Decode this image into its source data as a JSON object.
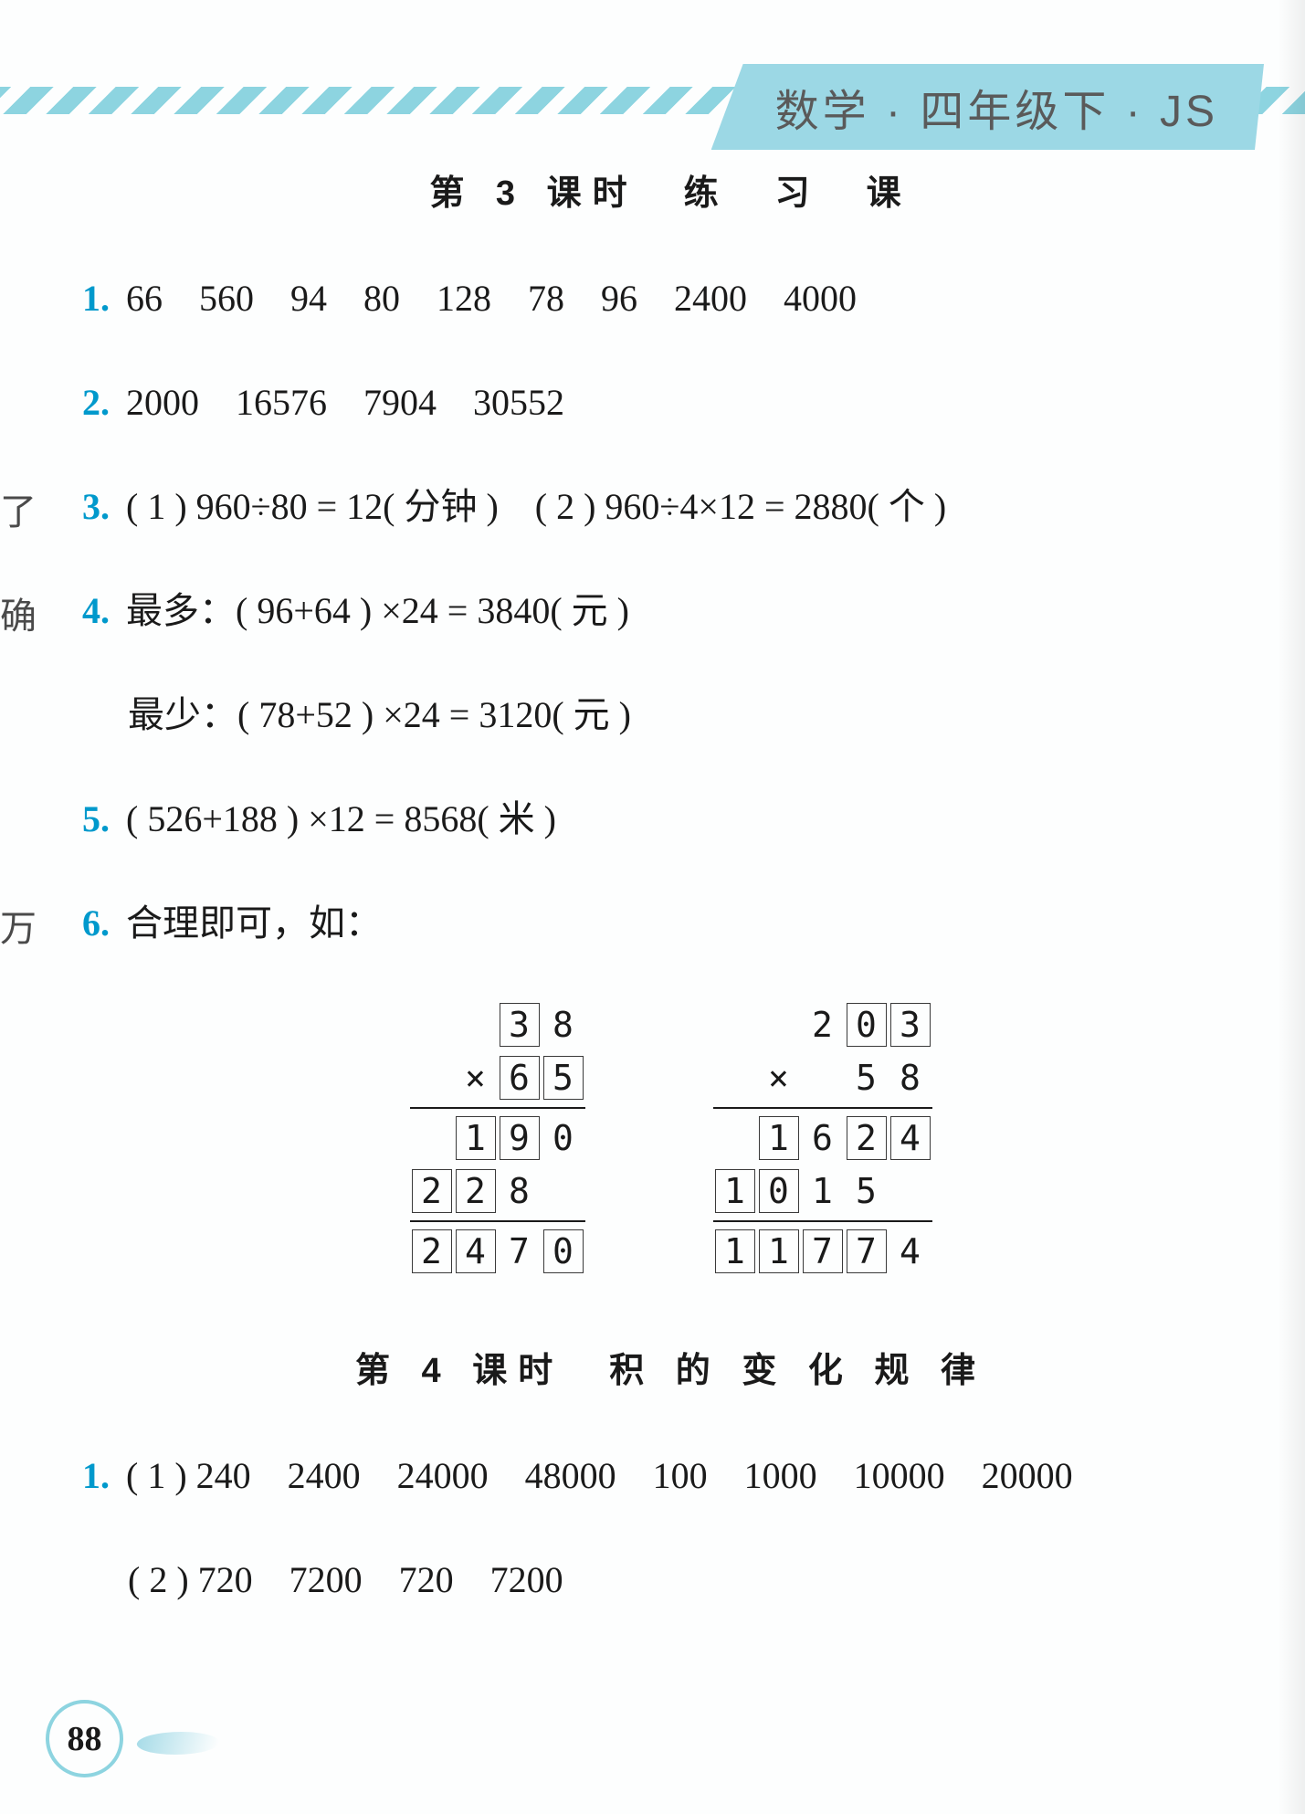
{
  "header": {
    "badge": "数学 · 四年级下 · JS"
  },
  "lesson3": {
    "title": "第 3 课时　练　习　课",
    "q1": {
      "num": "1.",
      "text": "66　560　94　80　128　78　96　2400　4000"
    },
    "q2": {
      "num": "2.",
      "text": "2000　16576　7904　30552"
    },
    "q3": {
      "num": "3.",
      "text": "( 1 ) 960÷80 = 12( 分钟 )　( 2 ) 960÷4×12 = 2880( 个 )"
    },
    "q4": {
      "num": "4.",
      "text_a": "最多：( 96+64 ) ×24 = 3840( 元 )",
      "text_b": "最少：( 78+52 ) ×24 = 3120( 元 )"
    },
    "q5": {
      "num": "5.",
      "text": "( 526+188 ) ×12 = 8568( 米 )"
    },
    "q6": {
      "num": "6.",
      "text": "合理即可，如："
    }
  },
  "margin": {
    "t1": "了",
    "t2": "确",
    "t3": "万"
  },
  "vertical_math": {
    "left": {
      "r1": [
        {
          "v": "3",
          "b": 1
        },
        {
          "v": "8",
          "b": 0
        }
      ],
      "r2": [
        {
          "v": "×",
          "b": 0
        },
        {
          "v": "6",
          "b": 1
        },
        {
          "v": "5",
          "b": 1
        }
      ],
      "r3": [
        {
          "v": "1",
          "b": 1
        },
        {
          "v": "9",
          "b": 1
        },
        {
          "v": "0",
          "b": 0
        }
      ],
      "r4": [
        {
          "v": "2",
          "b": 1
        },
        {
          "v": "2",
          "b": 1
        },
        {
          "v": "8",
          "b": 0
        },
        {
          "v": "",
          "b": 0
        }
      ],
      "r5": [
        {
          "v": "2",
          "b": 1
        },
        {
          "v": "4",
          "b": 1
        },
        {
          "v": "7",
          "b": 0
        },
        {
          "v": "0",
          "b": 1
        }
      ]
    },
    "right": {
      "r1": [
        {
          "v": "2",
          "b": 0
        },
        {
          "v": "0",
          "b": 1
        },
        {
          "v": "3",
          "b": 1
        }
      ],
      "r2": [
        {
          "v": "×",
          "b": 0
        },
        {
          "v": "",
          "b": 0
        },
        {
          "v": "5",
          "b": 0
        },
        {
          "v": "8",
          "b": 0
        }
      ],
      "r3": [
        {
          "v": "1",
          "b": 1
        },
        {
          "v": "6",
          "b": 0
        },
        {
          "v": "2",
          "b": 1
        },
        {
          "v": "4",
          "b": 1
        }
      ],
      "r4": [
        {
          "v": "1",
          "b": 1
        },
        {
          "v": "0",
          "b": 1
        },
        {
          "v": "1",
          "b": 0
        },
        {
          "v": "5",
          "b": 0
        },
        {
          "v": "",
          "b": 0
        }
      ],
      "r5": [
        {
          "v": "1",
          "b": 1
        },
        {
          "v": "1",
          "b": 1
        },
        {
          "v": "7",
          "b": 1
        },
        {
          "v": "7",
          "b": 1
        },
        {
          "v": "4",
          "b": 0
        }
      ]
    }
  },
  "lesson4": {
    "title": "第 4 课时　积 的 变 化 规 律",
    "q1": {
      "num": "1.",
      "text_a": "( 1 ) 240　2400　24000　48000　100　1000　10000　20000",
      "text_b": "( 2 ) 720　7200　720　7200"
    }
  },
  "page_number": "88",
  "colors": {
    "accent": "#0099cc",
    "header_bg": "#9cd8e5",
    "stripe": "#8dd4e0",
    "text": "#1a1a1a"
  }
}
